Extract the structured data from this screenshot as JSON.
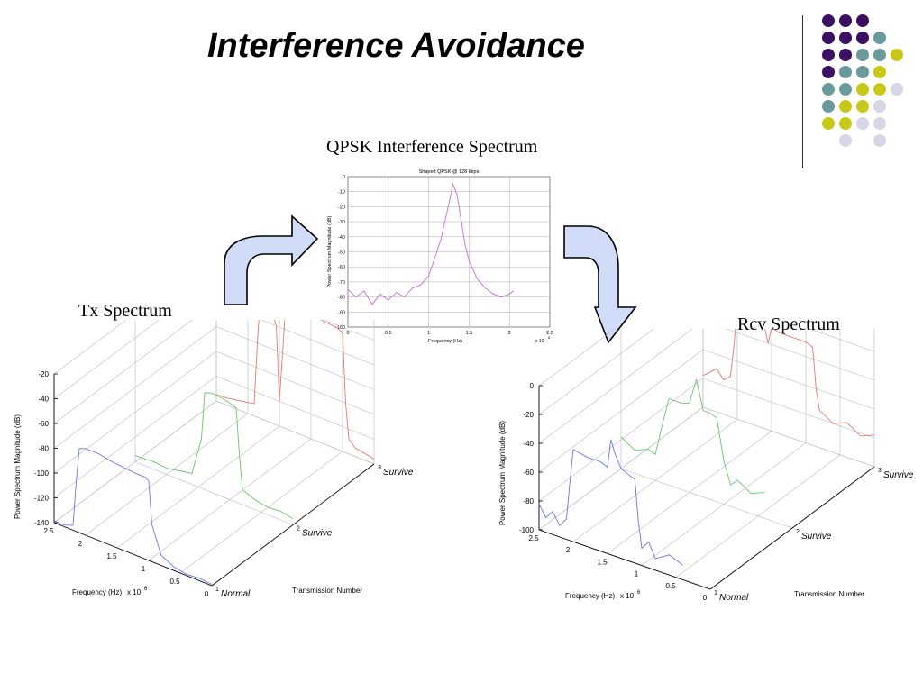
{
  "slide": {
    "title": "Interference Avoidance",
    "center_label": "QPSK Interference Spectrum",
    "tx_label": "Tx Spectrum",
    "rcv_label": "Rcv Spectrum"
  },
  "decor": {
    "dot_colors": {
      "purple": "#3b1060",
      "teal": "#6b9a9c",
      "yellow": "#c8c818",
      "lavender": "#d6d6e6"
    },
    "dot_rows": [
      [
        "purple",
        "purple",
        "purple",
        null
      ],
      [
        "purple",
        "purple",
        "purple",
        "teal"
      ],
      [
        "purple",
        "purple",
        "teal",
        "teal",
        "yellow"
      ],
      [
        "purple",
        "teal",
        "teal",
        "yellow"
      ],
      [
        "teal",
        "teal",
        "yellow",
        "yellow",
        "lavender"
      ],
      [
        "teal",
        "yellow",
        "yellow",
        "lavender"
      ],
      [
        "yellow",
        "yellow",
        "lavender",
        "lavender"
      ],
      [
        null,
        "lavender",
        null,
        "lavender"
      ]
    ],
    "arrow_fill": "#d0dcf8"
  },
  "chart_data": [
    {
      "id": "qpsk",
      "type": "line",
      "title": "Shaped QPSK @ 128 kbps",
      "xlabel": "Frequency (Hz)",
      "ylabel": "Power Spectrum Magnitude (dB)",
      "x_multiplier": "x 10",
      "x_exponent": "6",
      "xlim": [
        0,
        2.5
      ],
      "ylim": [
        -100,
        0
      ],
      "x_ticks": [
        "0",
        "0.5",
        "1",
        "1.5",
        "2",
        "2.5"
      ],
      "y_ticks": [
        "0",
        "-10",
        "-20",
        "-30",
        "-40",
        "-50",
        "-60",
        "-70",
        "-80",
        "-90",
        "-100"
      ],
      "color": "#c070c8",
      "series": [
        {
          "x": [
            0,
            0.1,
            0.2,
            0.3,
            0.4,
            0.5,
            0.6,
            0.7,
            0.8,
            0.9,
            1.0,
            1.05,
            1.1,
            1.15,
            1.2,
            1.25,
            1.3,
            1.35,
            1.4,
            1.45,
            1.5,
            1.55,
            1.6,
            1.7,
            1.8,
            1.9,
            2.0,
            2.05
          ],
          "y": [
            -75,
            -80,
            -76,
            -85,
            -78,
            -82,
            -77,
            -80,
            -74,
            -72,
            -66,
            -58,
            -50,
            -42,
            -30,
            -18,
            -5,
            -12,
            -28,
            -45,
            -56,
            -62,
            -68,
            -74,
            -78,
            -80,
            -78,
            -76
          ]
        }
      ]
    },
    {
      "id": "tx",
      "type": "line",
      "title": "",
      "ylabel": "Power Spectrum Magnitude (dB)",
      "xlabel": "Frequency (Hz)",
      "x_multiplier": "x 10",
      "x_exponent": "6",
      "zlabel": "Transmission Number",
      "z_ticks": [
        "-20",
        "-40",
        "-60",
        "-80",
        "-100",
        "-120",
        "-140"
      ],
      "zlim": [
        -140,
        -20
      ],
      "freq_ticks": [
        "2.5",
        "2",
        "1.5",
        "1",
        "0.5",
        "0"
      ],
      "tn_ticks": [
        "1",
        "2",
        "3"
      ],
      "tn_labels": [
        "Normal",
        "Survive",
        "Survive"
      ],
      "series": [
        {
          "color": "#6b78e0",
          "x": [
            2.5,
            2.4,
            2.3,
            2.2,
            2.15,
            2.1,
            2.0,
            1.8,
            1.6,
            1.4,
            1.2,
            1.1,
            1.05,
            1.0,
            0.95,
            0.8,
            0.6,
            0.4,
            0.2,
            0.0
          ],
          "y": [
            -138,
            -139,
            -138,
            -136,
            -100,
            -72,
            -70,
            -70,
            -72,
            -73,
            -74,
            -74,
            -74,
            -76,
            -110,
            -132,
            -137,
            -139,
            -138,
            -139
          ]
        },
        {
          "color": "#6fbf6f",
          "x": [
            2.5,
            2.2,
            2.0,
            1.8,
            1.6,
            1.45,
            1.4,
            1.3,
            1.2,
            1.0,
            0.9,
            0.85,
            0.8,
            0.6,
            0.4,
            0.2,
            0.0
          ],
          "y": [
            -135,
            -134,
            -135,
            -133,
            -131,
            -100,
            -62,
            -60,
            -60,
            -62,
            -64,
            -100,
            -128,
            -132,
            -134,
            -133,
            -135
          ]
        },
        {
          "color": "#e07870",
          "x": [
            2.5,
            2.3,
            2.1,
            1.9,
            1.85,
            1.8,
            1.7,
            1.55,
            1.5,
            1.4,
            1.2,
            1.0,
            0.8,
            0.6,
            0.5,
            0.45,
            0.4,
            0.3,
            0.1,
            0.0
          ],
          "y": [
            -135,
            -134,
            -132,
            -130,
            -80,
            -40,
            -38,
            -60,
            -120,
            -40,
            -40,
            -40,
            -41,
            -42,
            -44,
            -100,
            -128,
            -133,
            -135,
            -136
          ]
        }
      ]
    },
    {
      "id": "rcv",
      "type": "line",
      "title": "",
      "ylabel": "Power Spectrum Magnitude (dB)",
      "xlabel": "Frequency (Hz)",
      "x_multiplier": "x 10",
      "x_exponent": "6",
      "zlabel": "Transmission Number",
      "z_ticks": [
        "0",
        "-20",
        "-40",
        "-60",
        "-80",
        "-100"
      ],
      "zlim": [
        -100,
        0
      ],
      "freq_ticks": [
        "2.5",
        "2",
        "1.5",
        "1",
        "0.5",
        "0"
      ],
      "tn_ticks": [
        "1",
        "2",
        "3"
      ],
      "tn_labels": [
        "Normal",
        "Survive",
        "Survive"
      ],
      "series": [
        {
          "color": "#6b78e0",
          "x": [
            2.5,
            2.4,
            2.3,
            2.2,
            2.1,
            2.05,
            2.0,
            1.8,
            1.6,
            1.5,
            1.45,
            1.4,
            1.3,
            1.2,
            1.1,
            1.05,
            1.0,
            0.9,
            0.8,
            0.6,
            0.4
          ],
          "y": [
            -82,
            -90,
            -84,
            -92,
            -86,
            -60,
            -36,
            -38,
            -38,
            -40,
            -20,
            -28,
            -38,
            -40,
            -42,
            -70,
            -88,
            -82,
            -92,
            -86,
            -90
          ]
        },
        {
          "color": "#6fbf6f",
          "x": [
            2.5,
            2.3,
            2.1,
            2.0,
            1.9,
            1.8,
            1.6,
            1.5,
            1.4,
            1.35,
            1.3,
            1.2,
            1.1,
            1.0,
            0.9,
            0.8,
            0.6,
            0.4
          ],
          "y": [
            -78,
            -84,
            -80,
            -82,
            -60,
            -40,
            -40,
            -38,
            -20,
            -30,
            -40,
            -40,
            -42,
            -70,
            -85,
            -80,
            -86,
            -82
          ]
        },
        {
          "color": "#e07870",
          "x": [
            2.5,
            2.3,
            2.2,
            2.1,
            2.05,
            2.0,
            1.9,
            1.8,
            1.7,
            1.6,
            1.55,
            1.5,
            1.4,
            1.2,
            1.0,
            0.9,
            0.85,
            0.8,
            0.6,
            0.4,
            0.2,
            0.0
          ],
          "y": [
            -78,
            -70,
            -76,
            -72,
            -50,
            -22,
            -20,
            -5,
            -22,
            -30,
            -40,
            -28,
            -30,
            -30,
            -30,
            -32,
            -60,
            -74,
            -80,
            -76,
            -82,
            -78
          ]
        }
      ]
    }
  ]
}
